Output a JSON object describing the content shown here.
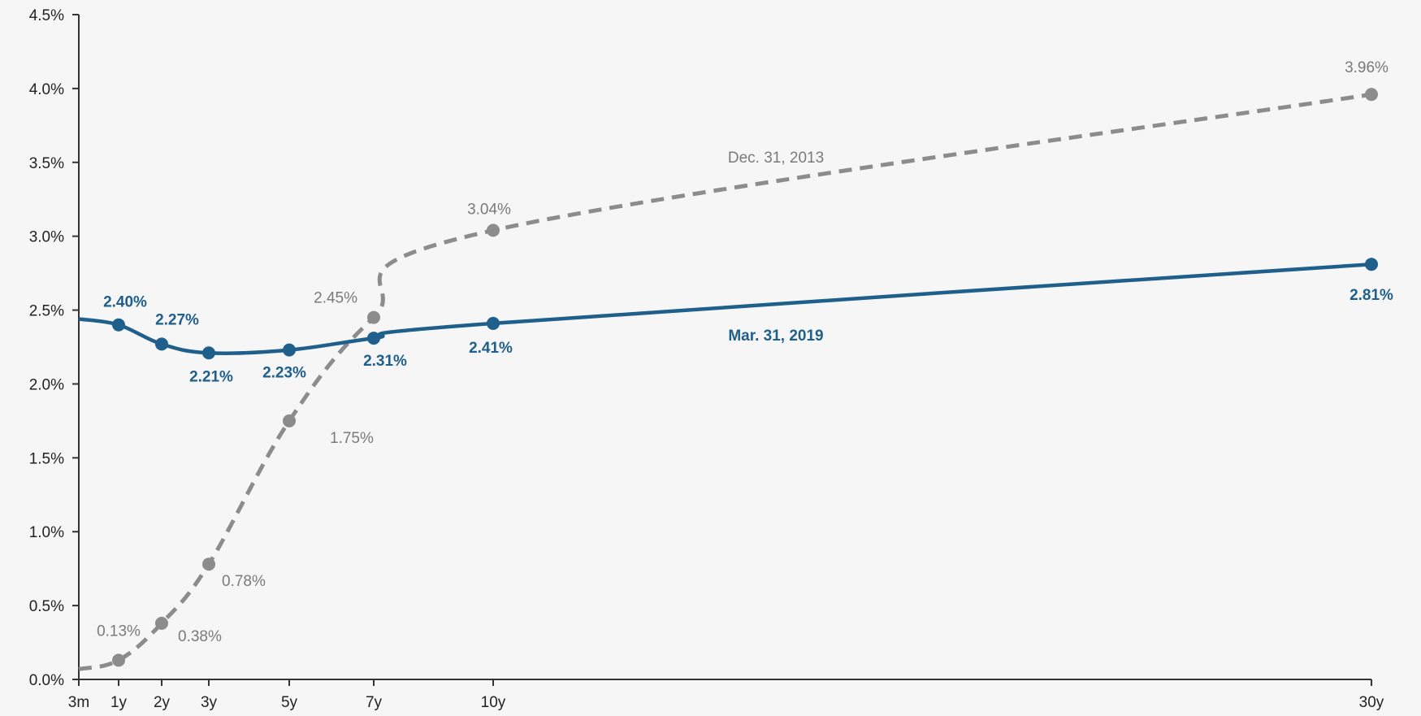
{
  "chart_data": {
    "type": "line",
    "title": "",
    "xlabel": "",
    "ylabel": "",
    "x_ticks": [
      "3m",
      "1y",
      "2y",
      "3y",
      "5y",
      "7y",
      "10y",
      "30y"
    ],
    "y_ticks": [
      "0.0%",
      "0.5%",
      "1.0%",
      "1.5%",
      "2.0%",
      "2.5%",
      "3.0%",
      "3.5%",
      "4.0%",
      "4.5%"
    ],
    "ylim": [
      0,
      4.5
    ],
    "grid": false,
    "legend": "none",
    "series": [
      {
        "name": "Dec. 31, 2013",
        "color": "#8c8c8c",
        "style": "dashed",
        "points": [
          {
            "x": "3m",
            "y": 0.07
          },
          {
            "x": "1y",
            "y": 0.13,
            "label": "0.13%"
          },
          {
            "x": "2y",
            "y": 0.38,
            "label": "0.38%"
          },
          {
            "x": "3y",
            "y": 0.78,
            "label": "0.78%"
          },
          {
            "x": "5y",
            "y": 1.75,
            "label": "1.75%"
          },
          {
            "x": "7y",
            "y": 2.45,
            "label": "2.45%"
          },
          {
            "x": "10y",
            "y": 3.04,
            "label": "3.04%"
          },
          {
            "x": "30y",
            "y": 3.96,
            "label": "3.96%"
          }
        ]
      },
      {
        "name": "Mar. 31, 2019",
        "color": "#1f5f8b",
        "style": "solid",
        "points": [
          {
            "x": "3m",
            "y": 2.44
          },
          {
            "x": "1y",
            "y": 2.4,
            "label": "2.40%"
          },
          {
            "x": "2y",
            "y": 2.27,
            "label": "2.27%"
          },
          {
            "x": "3y",
            "y": 2.21,
            "label": "2.21%"
          },
          {
            "x": "5y",
            "y": 2.23,
            "label": "2.23%"
          },
          {
            "x": "7y",
            "y": 2.31,
            "label": "2.31%"
          },
          {
            "x": "10y",
            "y": 2.41,
            "label": "2.41%"
          },
          {
            "x": "30y",
            "y": 2.81,
            "label": "2.81%"
          }
        ]
      }
    ]
  }
}
